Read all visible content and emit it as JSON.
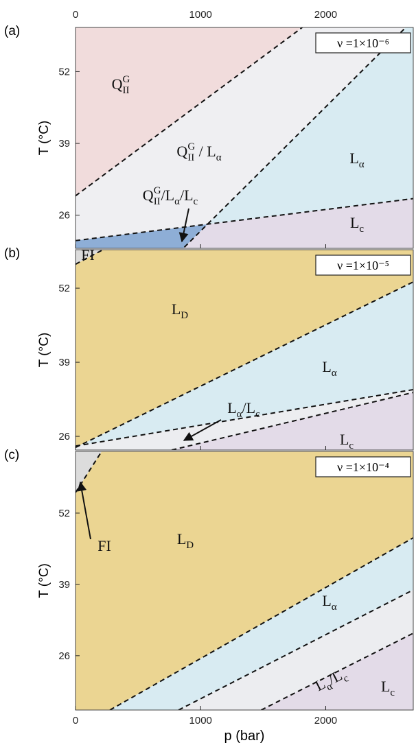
{
  "chart_data": [
    {
      "type": "phase",
      "panel_label": "(a)",
      "annotation": "ν =1×10⁻⁶",
      "y_label": "T (°C)",
      "xlim": [
        0,
        2700
      ],
      "ylim": [
        20,
        60
      ],
      "xticks": [
        0,
        1000,
        2000
      ],
      "yticks": [
        26,
        39,
        52
      ],
      "boundaries": [
        {
          "x": [
            0,
            1813
          ],
          "values": [
            29.5,
            60
          ]
        },
        {
          "x": [
            0,
            2700
          ],
          "values": [
            21.4,
            29.0
          ]
        },
        {
          "x": [
            870,
            2640
          ],
          "values": [
            20.2,
            60
          ]
        }
      ],
      "regions": [
        {
          "color": "#f1dcdc",
          "label": [
            [
              "Q",
              "n"
            ],
            [
              "II",
              "sub"
            ],
            [
              "G",
              "sup"
            ]
          ],
          "polygon": [
            [
              0,
              29.5
            ],
            [
              1813,
              60
            ],
            [
              0,
              60
            ]
          ]
        },
        {
          "color": "#efeff2",
          "label": [
            [
              "Q",
              "n"
            ],
            [
              "II",
              "sub"
            ],
            [
              "G",
              "sup"
            ],
            [
              " / L",
              "n"
            ],
            [
              "α",
              "sub"
            ]
          ],
          "polygon": [
            [
              0,
              21.4
            ],
            [
              1055,
              24.37
            ],
            [
              2640,
              60
            ],
            [
              1813,
              60
            ],
            [
              0,
              29.5
            ]
          ]
        },
        {
          "color": "#d8ebf2",
          "label": [
            [
              "L",
              "n"
            ],
            [
              "α",
              "sub"
            ]
          ],
          "polygon": [
            [
              1055,
              24.37
            ],
            [
              2700,
              29.0
            ],
            [
              2700,
              60
            ],
            [
              2640,
              60
            ]
          ]
        },
        {
          "color": "#e3dbe8",
          "label": [
            [
              "L",
              "n"
            ],
            [
              "c",
              "sub"
            ]
          ],
          "polygon": [
            [
              861,
              20
            ],
            [
              1055,
              24.37
            ],
            [
              2700,
              29.0
            ],
            [
              2700,
              20
            ]
          ]
        },
        {
          "color": "#8eaed6",
          "label": [
            [
              "Q",
              "n"
            ],
            [
              "II",
              "sub"
            ],
            [
              "G",
              "sup"
            ],
            [
              "/L",
              "n"
            ],
            [
              "α",
              "sub"
            ],
            [
              "/L",
              "n"
            ],
            [
              "c",
              "sub"
            ]
          ],
          "polygon": [
            [
              0,
              20
            ],
            [
              0,
              21.4
            ],
            [
              1055,
              24.37
            ],
            [
              861,
              20
            ]
          ]
        }
      ]
    },
    {
      "type": "phase",
      "panel_label": "(b)",
      "annotation": "ν =1×10⁻⁵",
      "y_label": "T (°C)",
      "xlim": [
        0,
        2700
      ],
      "ylim": [
        23.6,
        58.75
      ],
      "xticks": [
        0,
        1000,
        2000
      ],
      "yticks": [
        26,
        39,
        52
      ],
      "boundaries": [
        {
          "x": [
            0,
            220
          ],
          "values": [
            56.2,
            58.75
          ]
        },
        {
          "x": [
            0,
            2700
          ],
          "values": [
            24.05,
            53.1
          ]
        },
        {
          "x": [
            0,
            2700
          ],
          "values": [
            24.3,
            34.2
          ]
        },
        {
          "x": [
            769,
            2700
          ],
          "values": [
            23.6,
            33.7
          ]
        }
      ],
      "regions": [
        {
          "color": "#dcdcdc",
          "label": [
            [
              "FI",
              "n"
            ]
          ],
          "polygon": [
            [
              0,
              56.2
            ],
            [
              220,
              58.75
            ],
            [
              0,
              58.75
            ]
          ]
        },
        {
          "color": "#ebd592",
          "label": [
            [
              "L",
              "n"
            ],
            [
              "D",
              "sub"
            ]
          ],
          "polygon": [
            [
              0,
              24.05
            ],
            [
              2700,
              53.1
            ],
            [
              2700,
              58.75
            ],
            [
              220,
              58.75
            ],
            [
              0,
              56.2
            ]
          ]
        },
        {
          "color": "#d8ebf2",
          "label": [
            [
              "L",
              "n"
            ],
            [
              "α",
              "sub"
            ]
          ],
          "polygon": [
            [
              0,
              24.05
            ],
            [
              2700,
              53.1
            ],
            [
              2700,
              34.2
            ],
            [
              0,
              24.3
            ]
          ]
        },
        {
          "color": "#ecedf0",
          "label": [
            [
              "L",
              "n"
            ],
            [
              "α",
              "sub"
            ],
            [
              "/L",
              "n"
            ],
            [
              "c",
              "sub"
            ]
          ],
          "polygon": [
            [
              0,
              24.3
            ],
            [
              2700,
              34.2
            ],
            [
              2700,
              33.7
            ],
            [
              769,
              23.6
            ],
            [
              0,
              23.6
            ]
          ]
        },
        {
          "color": "#e3dbe8",
          "label": [
            [
              "L",
              "n"
            ],
            [
              "c",
              "sub"
            ]
          ],
          "polygon": [
            [
              769,
              23.6
            ],
            [
              2700,
              33.7
            ],
            [
              2700,
              23.6
            ]
          ]
        }
      ]
    },
    {
      "type": "phase",
      "panel_label": "(c)",
      "annotation": "ν =1×10⁻⁴",
      "y_label": "T (°C)",
      "x_label": "p (bar)",
      "xlim": [
        0,
        2700
      ],
      "ylim": [
        16.1,
        63.25
      ],
      "xticks": [
        0,
        1000,
        2000
      ],
      "yticks": [
        26,
        39,
        52
      ],
      "boundaries": [
        {
          "x": [
            0,
            209
          ],
          "values": [
            55.75,
            63.25
          ]
        },
        {
          "x": [
            275,
            2700
          ],
          "values": [
            16.1,
            47.5
          ]
        },
        {
          "x": [
            824,
            2700
          ],
          "values": [
            16.1,
            38.0
          ]
        },
        {
          "x": [
            1484,
            2700
          ],
          "values": [
            16.1,
            30.1
          ]
        }
      ],
      "regions": [
        {
          "color": "#dcdcdc",
          "label": [
            [
              "FI",
              "n"
            ]
          ],
          "polygon": [
            [
              0,
              55.75
            ],
            [
              209,
              63.25
            ],
            [
              0,
              63.25
            ]
          ]
        },
        {
          "color": "#ebd592",
          "label": [
            [
              "L",
              "n"
            ],
            [
              "D",
              "sub"
            ]
          ],
          "polygon": [
            [
              0,
              16.1
            ],
            [
              275,
              16.1
            ],
            [
              2700,
              47.5
            ],
            [
              2700,
              63.25
            ],
            [
              209,
              63.25
            ],
            [
              0,
              55.75
            ]
          ]
        },
        {
          "color": "#d8ebf2",
          "label": [
            [
              "L",
              "n"
            ],
            [
              "α",
              "sub"
            ]
          ],
          "polygon": [
            [
              275,
              16.1
            ],
            [
              824,
              16.1
            ],
            [
              2700,
              38.0
            ],
            [
              2700,
              47.5
            ]
          ]
        },
        {
          "color": "#ecedf0",
          "label": [
            [
              "L",
              "n"
            ],
            [
              "α",
              "sub"
            ],
            [
              "/L",
              "n"
            ],
            [
              "c",
              "sub"
            ]
          ],
          "polygon": [
            [
              824,
              16.1
            ],
            [
              1484,
              16.1
            ],
            [
              2700,
              30.1
            ],
            [
              2700,
              38.0
            ]
          ]
        },
        {
          "color": "#e3dbe8",
          "label": [
            [
              "L",
              "n"
            ],
            [
              "c",
              "sub"
            ]
          ],
          "polygon": [
            [
              1484,
              16.1
            ],
            [
              2700,
              16.1
            ],
            [
              2700,
              30.1
            ]
          ]
        }
      ]
    }
  ]
}
